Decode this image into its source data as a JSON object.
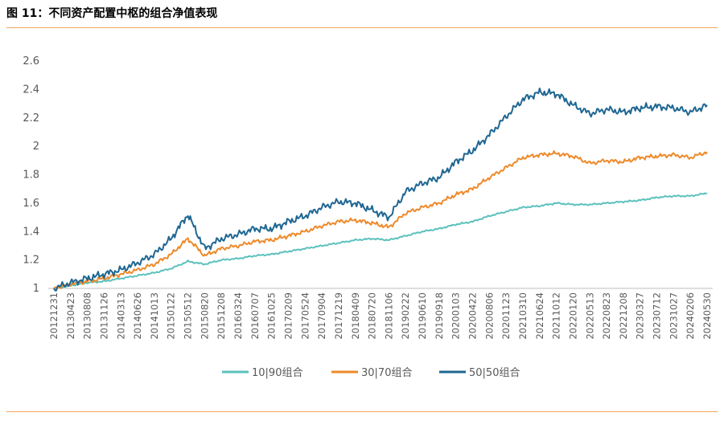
{
  "title": "图 11：不同资产配置中枢的组合净值表现",
  "chart_data": {
    "type": "line",
    "yticks": [
      "1",
      "1.2",
      "1.4",
      "1.6",
      "1.8",
      "2",
      "2.2",
      "2.4",
      "2.6"
    ],
    "ylim": [
      1,
      2.6
    ],
    "grid": false,
    "legend_position": "bottom",
    "x_tick_labels": [
      "20121231",
      "20130423",
      "20130808",
      "20131126",
      "20140313",
      "20140626",
      "20141013",
      "20150122",
      "20150512",
      "20150820",
      "20151208",
      "20160324",
      "20160707",
      "20161025",
      "20170209",
      "20170524",
      "20170904",
      "20171219",
      "20180409",
      "20180720",
      "20181106",
      "20190222",
      "20190610",
      "20190918",
      "20200103",
      "20200422",
      "20200806",
      "20201123",
      "20210310",
      "20210624",
      "20211012",
      "20220120",
      "20220513",
      "20220823",
      "20221208",
      "20230327",
      "20230712",
      "20231027",
      "20240206",
      "20240530"
    ],
    "series": [
      {
        "name": "10|90组合",
        "color": "#5bc1bd",
        "values": [
          1.0,
          1.02,
          1.04,
          1.05,
          1.07,
          1.09,
          1.11,
          1.14,
          1.19,
          1.17,
          1.2,
          1.21,
          1.23,
          1.24,
          1.26,
          1.28,
          1.3,
          1.32,
          1.34,
          1.35,
          1.34,
          1.37,
          1.4,
          1.42,
          1.45,
          1.47,
          1.51,
          1.54,
          1.57,
          1.58,
          1.6,
          1.59,
          1.59,
          1.6,
          1.61,
          1.62,
          1.64,
          1.65,
          1.65,
          1.67
        ]
      },
      {
        "name": "30|70组合",
        "color": "#ee8a2b",
        "values": [
          1.0,
          1.03,
          1.05,
          1.07,
          1.1,
          1.13,
          1.17,
          1.24,
          1.35,
          1.23,
          1.28,
          1.3,
          1.33,
          1.34,
          1.37,
          1.4,
          1.44,
          1.47,
          1.48,
          1.46,
          1.43,
          1.53,
          1.57,
          1.6,
          1.66,
          1.7,
          1.78,
          1.85,
          1.92,
          1.94,
          1.95,
          1.93,
          1.88,
          1.9,
          1.89,
          1.92,
          1.93,
          1.94,
          1.92,
          1.96
        ]
      },
      {
        "name": "50|50组合",
        "color": "#1f6792",
        "values": [
          1.0,
          1.04,
          1.07,
          1.1,
          1.13,
          1.18,
          1.24,
          1.35,
          1.52,
          1.28,
          1.35,
          1.38,
          1.42,
          1.42,
          1.47,
          1.51,
          1.57,
          1.61,
          1.6,
          1.55,
          1.5,
          1.68,
          1.74,
          1.78,
          1.89,
          1.97,
          2.08,
          2.21,
          2.33,
          2.38,
          2.37,
          2.29,
          2.23,
          2.26,
          2.24,
          2.27,
          2.28,
          2.27,
          2.24,
          2.29
        ]
      }
    ]
  }
}
